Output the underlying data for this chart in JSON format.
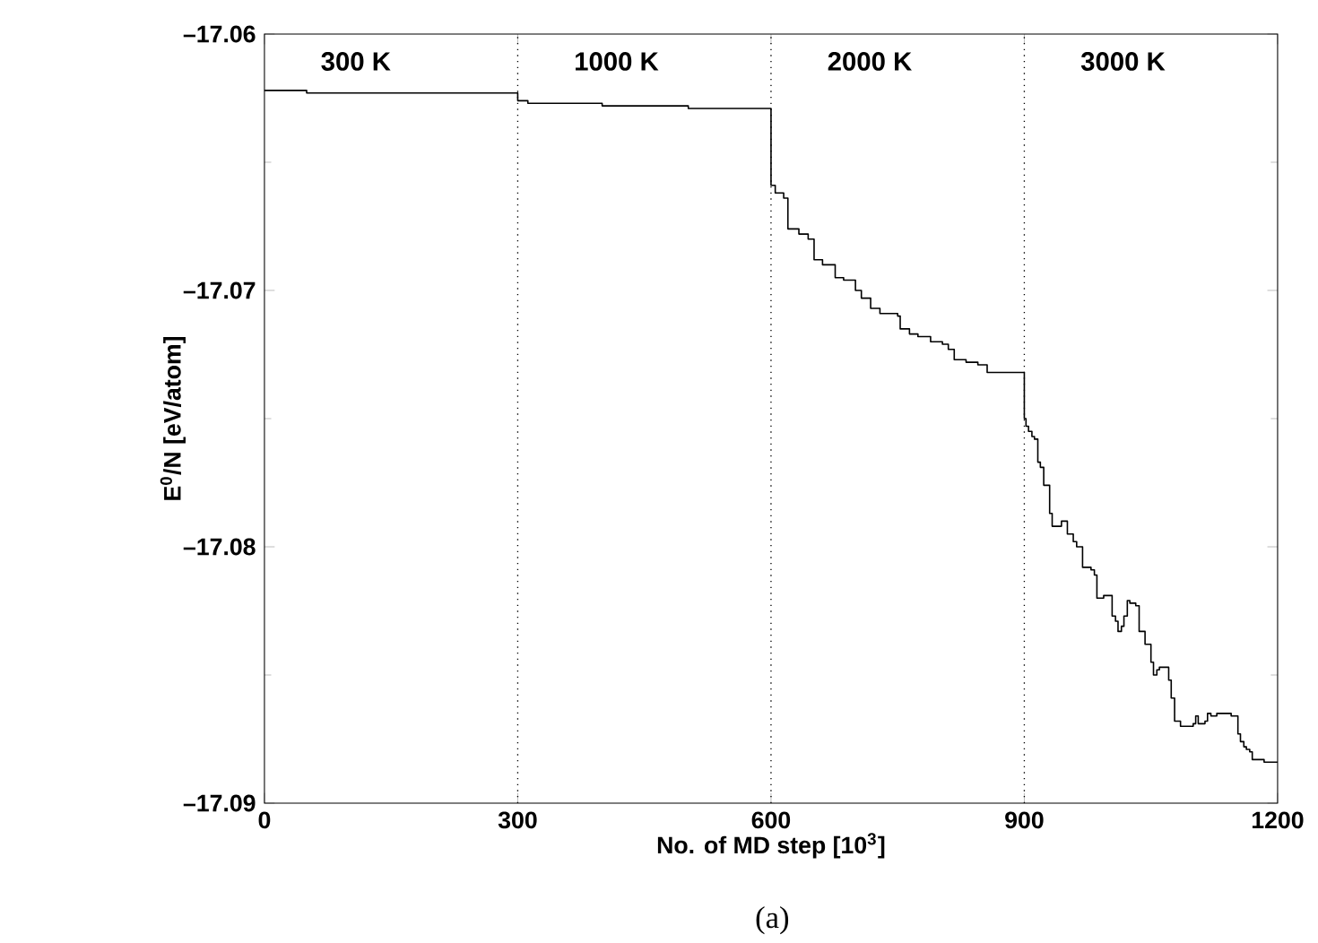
{
  "chart_data": {
    "type": "step",
    "xlabel": "No. of MD step [10$^{3}$]",
    "ylabel": "E$^{0}$/N [eV/atom]",
    "x": [
      0,
      50,
      300,
      312,
      400,
      502,
      600,
      605,
      615,
      620,
      633,
      644,
      651,
      661,
      676,
      686,
      700,
      707,
      718,
      729,
      750,
      753,
      764,
      774,
      789,
      803,
      810,
      817,
      831,
      845,
      856,
      900,
      902,
      905,
      909,
      912,
      916,
      919,
      923,
      930,
      933,
      941,
      944,
      951,
      958,
      962,
      969,
      979,
      983,
      986,
      994,
      1004,
      1008,
      1011,
      1015,
      1018,
      1022,
      1025,
      1032,
      1036,
      1043,
      1050,
      1053,
      1057,
      1060,
      1071,
      1074,
      1078,
      1085,
      1100,
      1103,
      1106,
      1114,
      1117,
      1121,
      1128,
      1145,
      1153,
      1156,
      1160,
      1163,
      1167,
      1170,
      1184,
      1200
    ],
    "values": [
      -17.0622,
      -17.0623,
      -17.0626,
      -17.0627,
      -17.0628,
      -17.0629,
      -17.0659,
      -17.0662,
      -17.0664,
      -17.0676,
      -17.0678,
      -17.068,
      -17.0688,
      -17.069,
      -17.0695,
      -17.0696,
      -17.07,
      -17.0703,
      -17.0707,
      -17.0709,
      -17.071,
      -17.0715,
      -17.0717,
      -17.0718,
      -17.072,
      -17.0721,
      -17.0723,
      -17.0727,
      -17.0728,
      -17.0729,
      -17.0732,
      -17.075,
      -17.0753,
      -17.0755,
      -17.0757,
      -17.0758,
      -17.0767,
      -17.0769,
      -17.0776,
      -17.0787,
      -17.0792,
      -17.0792,
      -17.079,
      -17.0795,
      -17.0798,
      -17.08,
      -17.0808,
      -17.0809,
      -17.0811,
      -17.082,
      -17.0819,
      -17.0827,
      -17.0829,
      -17.0833,
      -17.0831,
      -17.0827,
      -17.0821,
      -17.0822,
      -17.0823,
      -17.0833,
      -17.0838,
      -17.0845,
      -17.085,
      -17.0848,
      -17.0847,
      -17.0852,
      -17.0859,
      -17.0868,
      -17.087,
      -17.0869,
      -17.0866,
      -17.0869,
      -17.0868,
      -17.0865,
      -17.0866,
      -17.0865,
      -17.0866,
      -17.0873,
      -17.0876,
      -17.0878,
      -17.0879,
      -17.088,
      -17.0883,
      -17.0884,
      -17.0884
    ],
    "color": "#000000",
    "xlim": [
      0,
      1200
    ],
    "xticks": [
      0,
      300,
      600,
      900,
      1200
    ],
    "ylim": [
      -17.09,
      -17.06
    ],
    "yticks": [
      {
        "value": -17.09,
        "label": "–17.09"
      },
      {
        "value": -17.08,
        "label": "–17.08"
      },
      {
        "value": -17.07,
        "label": "–17.07"
      },
      {
        "value": -17.06,
        "label": "–17.06"
      }
    ],
    "ref_lines": [
      {
        "axis": "x",
        "value": 300,
        "line_style": "dotted"
      },
      {
        "axis": "x",
        "value": 600,
        "line_style": "dotted"
      },
      {
        "axis": "x",
        "value": 900,
        "line_style": "dotted"
      }
    ],
    "annotations": [
      "300 K",
      "1000 K",
      "2000 K",
      "3000 K",
      "(a)"
    ],
    "grid": false
  }
}
